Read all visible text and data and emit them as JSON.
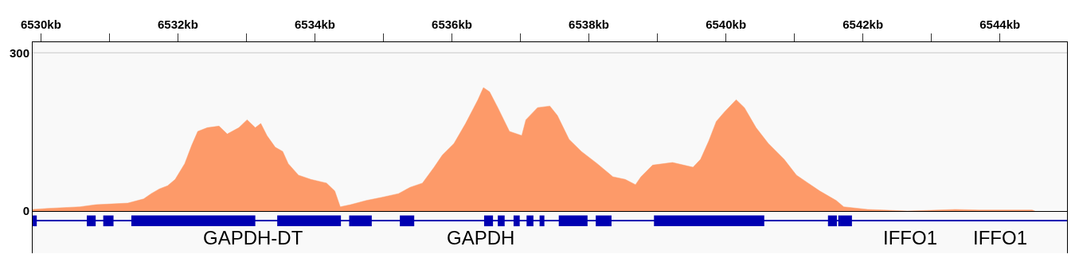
{
  "chart_data": [
    {
      "type": "area",
      "xlim": [
        6529.88,
        6544.98
      ],
      "ylim": [
        0,
        320
      ],
      "xticks": [
        {
          "value": 6530,
          "label": "6530kb"
        },
        {
          "value": 6531,
          "label": null
        },
        {
          "value": 6532,
          "label": "6532kb"
        },
        {
          "value": 6533,
          "label": null
        },
        {
          "value": 6534,
          "label": "6534kb"
        },
        {
          "value": 6535,
          "label": null
        },
        {
          "value": 6536,
          "label": "6536kb"
        },
        {
          "value": 6537,
          "label": null
        },
        {
          "value": 6538,
          "label": "6538kb"
        },
        {
          "value": 6539,
          "label": null
        },
        {
          "value": 6540,
          "label": "6540kb"
        },
        {
          "value": 6541,
          "label": null
        },
        {
          "value": 6542,
          "label": "6542kb"
        },
        {
          "value": 6543,
          "label": null
        },
        {
          "value": 6544,
          "label": "6544kb"
        }
      ],
      "yticks": [
        0,
        300
      ],
      "ref_lines": [
        {
          "axis": "y",
          "value": 300,
          "color": "#c8c8c8"
        }
      ],
      "grid": false,
      "series": [
        {
          "color": "#fd9a69",
          "x": [
            6529.88,
            6530.1,
            6530.57,
            6530.8,
            6531.27,
            6531.5,
            6531.61,
            6531.73,
            6531.85,
            6531.96,
            6532.1,
            6532.2,
            6532.29,
            6532.43,
            6532.6,
            6532.72,
            6532.89,
            6533.01,
            6533.13,
            6533.21,
            6533.3,
            6533.42,
            6533.53,
            6533.61,
            6533.76,
            6533.94,
            6534.17,
            6534.29,
            6534.37,
            6534.52,
            6534.75,
            6534.98,
            6535.22,
            6535.39,
            6535.57,
            6535.74,
            6535.86,
            6536.03,
            6536.2,
            6536.38,
            6536.46,
            6536.55,
            6536.67,
            6536.84,
            6537.02,
            6537.08,
            6537.25,
            6537.43,
            6537.54,
            6537.71,
            6537.89,
            6538.12,
            6538.35,
            6538.53,
            6538.68,
            6538.76,
            6538.93,
            6539.22,
            6539.52,
            6539.63,
            6539.75,
            6539.86,
            6539.98,
            6540.15,
            6540.27,
            6540.44,
            6540.62,
            6540.85,
            6541.03,
            6541.2,
            6541.37,
            6541.61,
            6541.72,
            6542.07,
            6542.3,
            6542.65,
            6543.35,
            6543.7,
            6544.47,
            6544.51
          ],
          "values": [
            3,
            5,
            8,
            12,
            15,
            23,
            33,
            42,
            48,
            60,
            90,
            124,
            151,
            158,
            161,
            146,
            158,
            173,
            158,
            166,
            143,
            121,
            113,
            90,
            68,
            60,
            53,
            38,
            8,
            12,
            20,
            26,
            33,
            45,
            53,
            83,
            106,
            128,
            166,
            211,
            234,
            226,
            196,
            151,
            143,
            173,
            196,
            199,
            181,
            136,
            113,
            90,
            65,
            60,
            50,
            65,
            87,
            92,
            83,
            98,
            133,
            170,
            188,
            211,
            196,
            158,
            128,
            98,
            68,
            53,
            38,
            20,
            8,
            3,
            2,
            0,
            3,
            2,
            2,
            0
          ]
        }
      ]
    },
    {
      "type": "bar",
      "orientation": "horizontal",
      "categories": [
        null
      ],
      "xlim": [
        6529.88,
        6544.98
      ],
      "tick_labels": false,
      "series": [
        {
          "color": "#0000b2",
          "line_style": "solid",
          "base": [
            6529.88
          ],
          "values": [
            15.1
          ]
        },
        {
          "color": "#0000b2",
          "base": [
            6529.88
          ],
          "values": [
            0.06
          ]
        },
        {
          "color": "#0000b2",
          "base": [
            6530.67
          ],
          "values": [
            0.13
          ]
        },
        {
          "color": "#0000b2",
          "base": [
            6530.91
          ],
          "values": [
            0.15
          ]
        },
        {
          "color": "#0000b2",
          "base": [
            6531.32
          ],
          "values": [
            1.81
          ]
        },
        {
          "color": "#0000b2",
          "base": [
            6533.45
          ],
          "values": [
            0.93
          ]
        },
        {
          "color": "#0000b2",
          "base": [
            6534.5
          ],
          "values": [
            0.33
          ]
        },
        {
          "color": "#0000b2",
          "base": [
            6535.24
          ],
          "values": [
            0.21
          ]
        },
        {
          "color": "#0000b2",
          "base": [
            6536.47
          ],
          "values": [
            0.13
          ]
        },
        {
          "color": "#0000b2",
          "base": [
            6536.67
          ],
          "values": [
            0.1
          ]
        },
        {
          "color": "#0000b2",
          "base": [
            6536.9
          ],
          "values": [
            0.09
          ]
        },
        {
          "color": "#0000b2",
          "base": [
            6537.09
          ],
          "values": [
            0.1
          ]
        },
        {
          "color": "#0000b2",
          "base": [
            6537.28
          ],
          "values": [
            0.07
          ]
        },
        {
          "color": "#0000b2",
          "base": [
            6537.56
          ],
          "values": [
            0.42
          ]
        },
        {
          "color": "#0000b2",
          "base": [
            6538.1
          ],
          "values": [
            0.23
          ]
        },
        {
          "color": "#0000b2",
          "base": [
            6538.95
          ],
          "values": [
            1.61
          ]
        },
        {
          "color": "#0000b2",
          "base": [
            6541.49
          ],
          "values": [
            0.13
          ]
        },
        {
          "color": "#0000b2",
          "base": [
            6541.64
          ],
          "values": [
            0.2
          ]
        }
      ],
      "annotations": [
        "GAPDH-DT",
        "GAPDH",
        "IFFO1",
        "IFFO1"
      ]
    }
  ]
}
